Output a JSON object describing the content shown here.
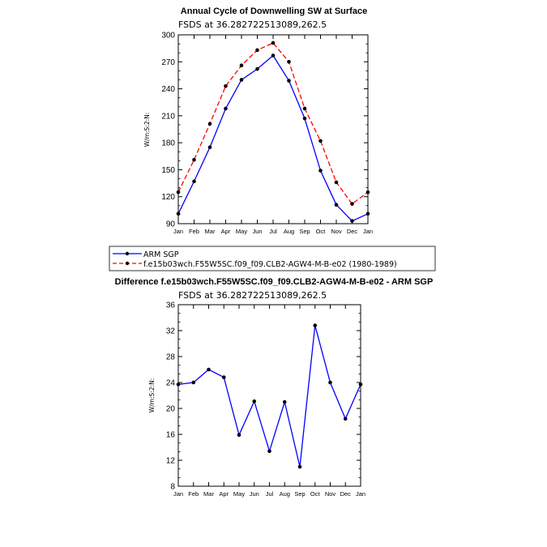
{
  "chart_data": [
    {
      "type": "line",
      "title": "Annual Cycle of Downwelling SW at Surface",
      "subtitle": "FSDS at 36.282722513089,262.5",
      "ylabel": "W/m:S:2:N:",
      "xlabel": "",
      "categories": [
        "Jan",
        "Feb",
        "Mar",
        "Apr",
        "May",
        "Jun",
        "Jul",
        "Aug",
        "Sep",
        "Oct",
        "Nov",
        "Dec",
        "Jan"
      ],
      "ylim": [
        90,
        300
      ],
      "yticks": [
        90,
        120,
        150,
        180,
        210,
        240,
        270,
        300
      ],
      "series": [
        {
          "name": "ARM SGP",
          "color": "#0000ff",
          "dashed": false,
          "values": [
            101,
            137,
            175,
            218,
            250,
            262,
            277,
            249,
            207,
            149,
            111,
            93,
            101
          ]
        },
        {
          "name": "f.e15b03wch.F55W5SC.f09_f09.CLB2-AGW4-M-B-e02 (1980-1989)",
          "color": "#ff0000",
          "dashed": true,
          "values": [
            125,
            161,
            201,
            243,
            266,
            283,
            291,
            270,
            218,
            182,
            136,
            112,
            125
          ]
        }
      ]
    },
    {
      "type": "line",
      "title": "Difference f.e15b03wch.F55W5SC.f09_f09.CLB2-AGW4-M-B-e02 - ARM SGP",
      "subtitle": "FSDS at 36.282722513089,262.5",
      "ylabel": "W/m:S:2:N:",
      "xlabel": "",
      "categories": [
        "Jan",
        "Feb",
        "Mar",
        "Apr",
        "May",
        "Jun",
        "Jul",
        "Aug",
        "Sep",
        "Oct",
        "Nov",
        "Dec",
        "Jan"
      ],
      "ylim": [
        8,
        36
      ],
      "yticks": [
        8,
        12,
        16,
        20,
        24,
        28,
        32,
        36
      ],
      "series": [
        {
          "name": "Difference",
          "color": "#0000ff",
          "dashed": false,
          "values": [
            23.7,
            24.0,
            26.0,
            24.8,
            15.9,
            21.1,
            13.4,
            21.0,
            11.0,
            32.8,
            24.0,
            18.4,
            23.7
          ]
        }
      ]
    }
  ],
  "legend": {
    "items": [
      {
        "label": "ARM SGP"
      },
      {
        "label": "f.e15b03wch.F55W5SC.f09_f09.CLB2-AGW4-M-B-e02 (1980-1989)"
      }
    ]
  }
}
